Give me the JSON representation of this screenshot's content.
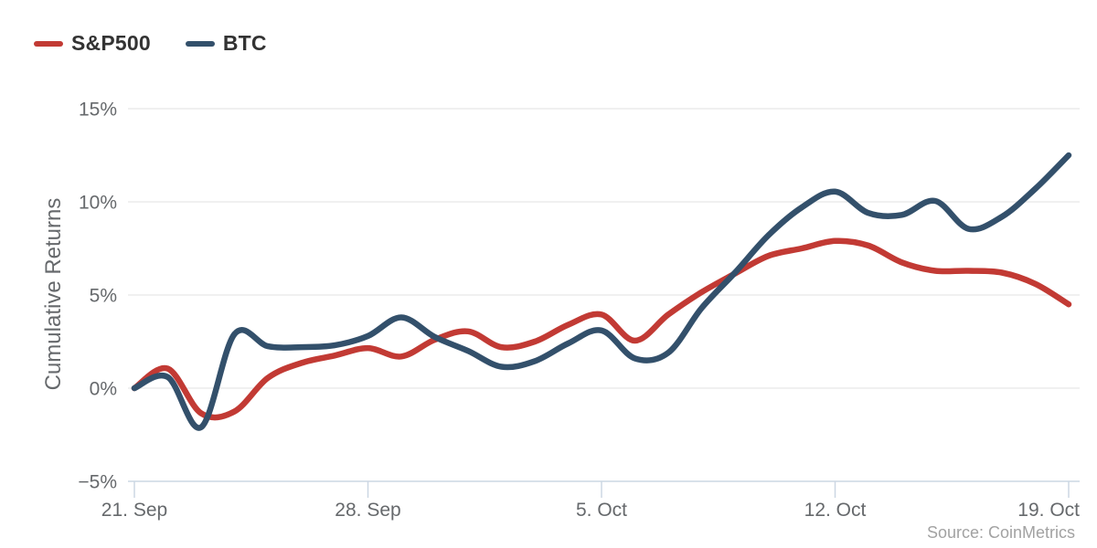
{
  "source_note": "Source: CoinMetrics",
  "colors": {
    "background": "#ffffff",
    "grid": "#e6e6e6",
    "axis_line": "#ccd7e3",
    "tick_label": "#66696c",
    "axis_title": "#66696c",
    "legend_text": "#333333",
    "source_text": "#a2a2a2"
  },
  "chart_data": {
    "type": "line",
    "title": "",
    "xlabel": "",
    "ylabel": "Cumulative Returns",
    "unit": "%",
    "ylim": [
      -5,
      15
    ],
    "grid": true,
    "legend_position": "top-left",
    "yticks": [
      {
        "value": 15,
        "label": "15%"
      },
      {
        "value": 10,
        "label": "10%"
      },
      {
        "value": 5,
        "label": "5%"
      },
      {
        "value": 0,
        "label": "0%"
      },
      {
        "value": -5,
        "label": "−5%"
      }
    ],
    "x": [
      "21. Sep",
      "22. Sep",
      "23. Sep",
      "24. Sep",
      "25. Sep",
      "26. Sep",
      "27. Sep",
      "28. Sep",
      "29. Sep",
      "30. Sep",
      "1. Oct",
      "2. Oct",
      "3. Oct",
      "4. Oct",
      "5. Oct",
      "6. Oct",
      "7. Oct",
      "8. Oct",
      "9. Oct",
      "10. Oct",
      "11. Oct",
      "12. Oct",
      "13. Oct",
      "14. Oct",
      "15. Oct",
      "16. Oct",
      "17. Oct",
      "18. Oct",
      "19. Oct"
    ],
    "x_ticks": [
      {
        "index": 0,
        "label": "21. Sep"
      },
      {
        "index": 7,
        "label": "28. Sep"
      },
      {
        "index": 14,
        "label": "5. Oct"
      },
      {
        "index": 21,
        "label": "12. Oct"
      },
      {
        "index": 28,
        "label": "19. Oct"
      }
    ],
    "series": [
      {
        "name": "S&P500",
        "color": "#c23a34",
        "values": [
          0,
          1.05,
          -1.35,
          -1.25,
          0.55,
          1.35,
          1.75,
          2.15,
          1.7,
          2.6,
          3.05,
          2.2,
          2.5,
          3.4,
          3.95,
          2.55,
          3.95,
          5.15,
          6.15,
          7.1,
          7.5,
          7.9,
          7.65,
          6.75,
          6.3,
          6.3,
          6.2,
          5.6,
          4.5
        ]
      },
      {
        "name": "BTC",
        "color": "#33506b",
        "values": [
          0,
          0.6,
          -2.1,
          2.9,
          2.25,
          2.2,
          2.3,
          2.8,
          3.8,
          2.75,
          2.0,
          1.15,
          1.45,
          2.4,
          3.1,
          1.6,
          1.9,
          4.3,
          6.2,
          8.2,
          9.7,
          10.55,
          9.4,
          9.3,
          10.05,
          8.55,
          9.2,
          10.7,
          12.5
        ]
      }
    ]
  }
}
